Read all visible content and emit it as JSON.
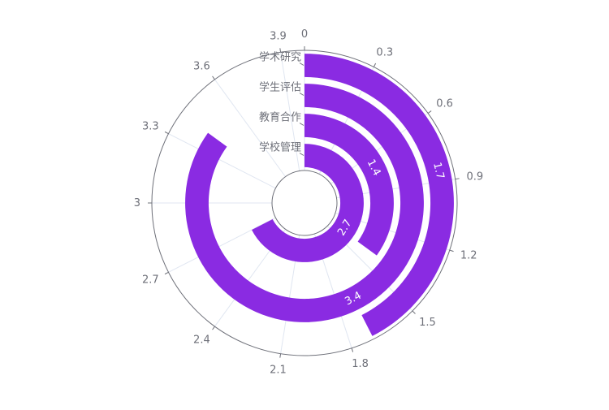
{
  "chart_data": {
    "type": "polar-bar",
    "title": "",
    "angle_axis": {
      "min": 0,
      "max": 4,
      "ticks": [
        "0",
        "0.3",
        "0.6",
        "0.9",
        "1.2",
        "1.5",
        "1.8",
        "2.1",
        "2.4",
        "2.7",
        "3",
        "3.3",
        "3.6",
        "3.9"
      ],
      "direction": "clockwise",
      "start": "top"
    },
    "categories": [
      "学校管理",
      "教育合作",
      "学生评估",
      "学术研究"
    ],
    "values": [
      2.7,
      1.4,
      3.4,
      1.7
    ],
    "data_labels": [
      "2.7",
      "1.4",
      "3.4",
      "1.7"
    ],
    "grid": true,
    "colors": {
      "bar": "#8a2be2",
      "axis": "#6e7079",
      "grid": "#e0e6f1",
      "label": "#6e7079",
      "data_label": "#ffffff"
    }
  }
}
